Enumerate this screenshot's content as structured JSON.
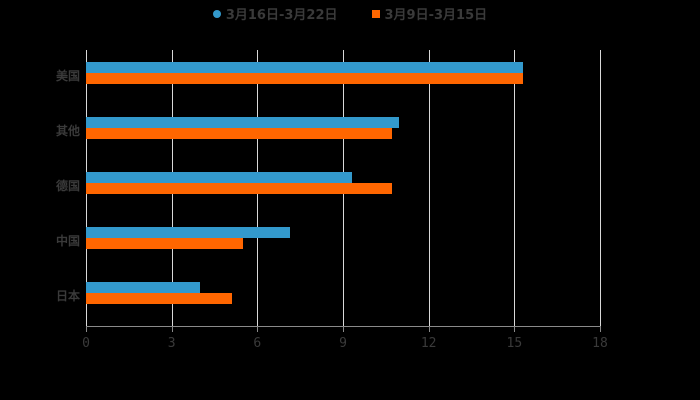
{
  "legend": [
    {
      "label": "3月16日-3月22日",
      "color": "#3399cc",
      "marker": "circle"
    },
    {
      "label": "3月9日-3月15日",
      "color": "#ff6600",
      "marker": "square"
    }
  ],
  "chart_data": {
    "type": "bar",
    "orientation": "horizontal",
    "title": "",
    "xlabel": "",
    "ylabel": "",
    "categories": [
      "美国",
      "其他",
      "德国",
      "中国",
      "日本"
    ],
    "series": [
      {
        "name": "3月16日-3月22日",
        "color": "#3399cc",
        "values": [
          15.3,
          10.95,
          9.3,
          7.15,
          4.0
        ]
      },
      {
        "name": "3月9日-3月15日",
        "color": "#ff6600",
        "values": [
          15.3,
          10.7,
          10.7,
          5.5,
          5.1
        ]
      }
    ],
    "xticks": [
      "0",
      "3",
      "6",
      "9",
      "12",
      "15",
      "18"
    ],
    "xlim": [
      0,
      18
    ],
    "grid": true,
    "legend_position": "top"
  }
}
